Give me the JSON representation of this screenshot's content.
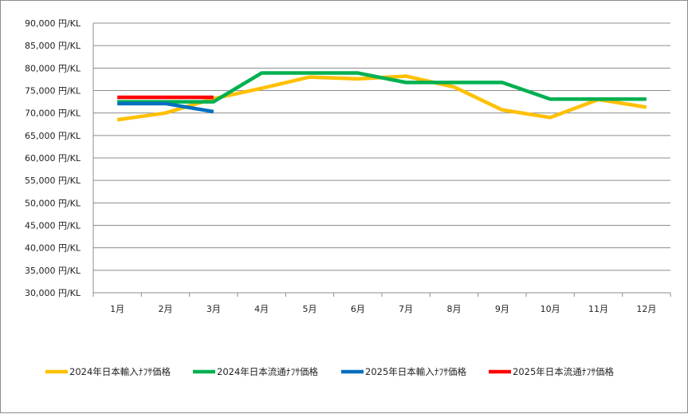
{
  "chart_data": {
    "type": "line",
    "title": "",
    "xlabel": "",
    "ylabel": "",
    "categories": [
      "1月",
      "2月",
      "3月",
      "4月",
      "5月",
      "6月",
      "7月",
      "8月",
      "9月",
      "10月",
      "11月",
      "12月"
    ],
    "ylim": [
      30000,
      90000
    ],
    "ytick_step": 5000,
    "y_tick_labels": [
      "30,000 円/KL",
      "35,000 円/KL",
      "40,000 円/KL",
      "45,000 円/KL",
      "50,000 円/KL",
      "55,000 円/KL",
      "60,000 円/KL",
      "65,000 円/KL",
      "70,000 円/KL",
      "75,000 円/KL",
      "80,000 円/KL",
      "85,000 円/KL",
      "90,000 円/KL"
    ],
    "grid": true,
    "legend_position": "bottom",
    "series": [
      {
        "name": "2024年日本輸入ﾅﾌｻ価格",
        "color": "#FFC000",
        "values": [
          68500,
          70000,
          73200,
          75500,
          78000,
          77600,
          78200,
          75800,
          70700,
          69000,
          73000,
          71300
        ]
      },
      {
        "name": "2024年日本流通ﾅﾌｻ価格",
        "color": "#00B050",
        "values": [
          72500,
          72500,
          72500,
          78900,
          78900,
          78900,
          76800,
          76800,
          76800,
          73100,
          73100,
          73100
        ]
      },
      {
        "name": "2025年日本輸入ﾅﾌｻ価格",
        "color": "#0070C0",
        "values": [
          72100,
          72100,
          70300,
          null,
          null,
          null,
          null,
          null,
          null,
          null,
          null,
          null
        ]
      },
      {
        "name": "2025年日本流通ﾅﾌｻ価格",
        "color": "#FF0000",
        "values": [
          73500,
          73500,
          73500,
          null,
          null,
          null,
          null,
          null,
          null,
          null,
          null,
          null
        ]
      }
    ]
  }
}
